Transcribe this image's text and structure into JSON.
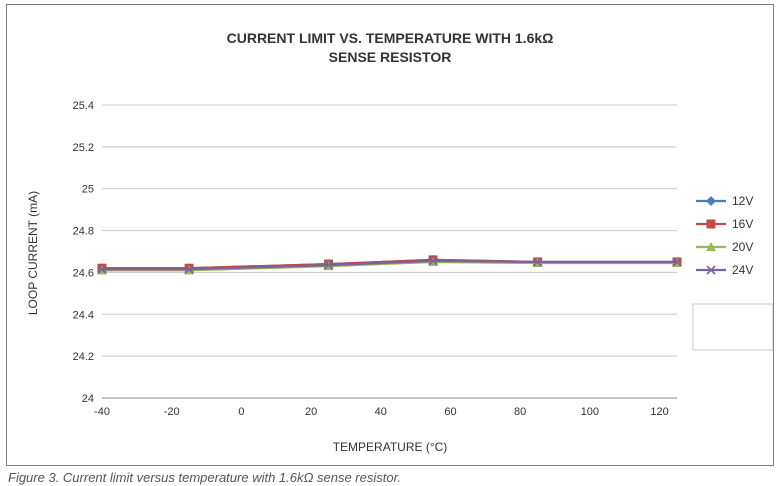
{
  "chart_data": {
    "type": "line",
    "title_lines": [
      "CURRENT LIMIT VS. TEMPERATURE WITH 1.6kΩ",
      "SENSE RESISTOR"
    ],
    "xlabel": "TEMPERATURE (°C)",
    "ylabel": "LOOP CURRENT (mA)",
    "xlim": [
      -40,
      125
    ],
    "ylim": [
      24,
      25.4
    ],
    "x_ticks": [
      -40,
      -20,
      0,
      20,
      40,
      60,
      80,
      100,
      120
    ],
    "x_tick_labels": [
      "-40",
      "-20",
      "0",
      "20",
      "40",
      "60",
      "80",
      "100",
      "120"
    ],
    "y_ticks": [
      24,
      24.2,
      24.4,
      24.6,
      24.8,
      25,
      25.2,
      25.4
    ],
    "y_tick_labels": [
      "24",
      "24.2",
      "24.4",
      "24.6",
      "24.8",
      "25",
      "25.2",
      "25.4"
    ],
    "grid": "horizontal",
    "legend_position": "right",
    "series": [
      {
        "name": "12V",
        "color": "#4a7ebb",
        "marker": "diamond",
        "x": [
          -40,
          -15,
          25,
          55,
          85,
          125
        ],
        "y": [
          24.62,
          24.62,
          24.64,
          24.66,
          24.65,
          24.65
        ]
      },
      {
        "name": "16V",
        "color": "#be4b48",
        "marker": "square",
        "x": [
          -40,
          -15,
          25,
          55,
          85,
          125
        ],
        "y": [
          24.62,
          24.62,
          24.64,
          24.66,
          24.65,
          24.65
        ]
      },
      {
        "name": "20V",
        "color": "#98b954",
        "marker": "triangle",
        "x": [
          -40,
          -15,
          25,
          55,
          85,
          125
        ],
        "y": [
          24.61,
          24.61,
          24.63,
          24.65,
          24.645,
          24.645
        ]
      },
      {
        "name": "24V",
        "color": "#7d60a0",
        "marker": "x",
        "x": [
          -40,
          -15,
          25,
          55,
          85,
          125
        ],
        "y": [
          24.615,
          24.615,
          24.635,
          24.655,
          24.65,
          24.65
        ]
      }
    ]
  },
  "caption": "Figure 3. Current limit versus temperature with 1.6kΩ sense resistor."
}
